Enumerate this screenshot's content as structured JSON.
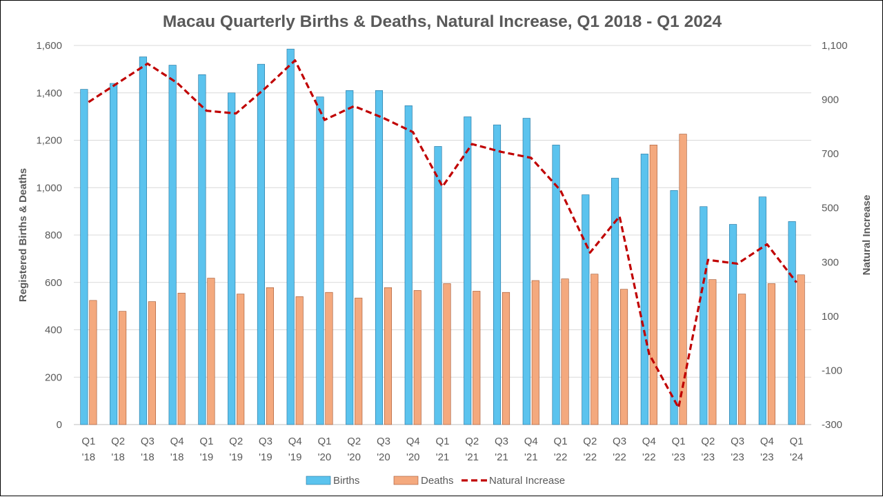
{
  "chart_data": {
    "type": "bar",
    "title": "Macau Quarterly Births & Deaths, Natural Increase, Q1 2018 - Q1 2024",
    "ylabel": "Registered Births & Deaths",
    "y2label": "Natural Increase",
    "ylim": [
      0,
      1600
    ],
    "y2lim": [
      -300,
      1100
    ],
    "yticks": [
      "0",
      "200",
      "400",
      "600",
      "800",
      "1,000",
      "1,200",
      "1,400",
      "1,600"
    ],
    "y2ticks": [
      "-300",
      "-100",
      "100",
      "300",
      "500",
      "700",
      "900",
      "1,100"
    ],
    "ytick_values": [
      0,
      200,
      400,
      600,
      800,
      1000,
      1200,
      1400,
      1600
    ],
    "y2tick_values": [
      -300,
      -100,
      100,
      300,
      500,
      700,
      900,
      1100
    ],
    "categories": [
      [
        "Q1",
        "'18"
      ],
      [
        "Q2",
        "'18"
      ],
      [
        "Q3",
        "'18"
      ],
      [
        "Q4",
        "'18"
      ],
      [
        "Q1",
        "'19"
      ],
      [
        "Q2",
        "'19"
      ],
      [
        "Q3",
        "'19"
      ],
      [
        "Q4",
        "'19"
      ],
      [
        "Q1",
        "'20"
      ],
      [
        "Q2",
        "'20"
      ],
      [
        "Q3",
        "'20"
      ],
      [
        "Q4",
        "'20"
      ],
      [
        "Q1",
        "'21"
      ],
      [
        "Q2",
        "'21"
      ],
      [
        "Q3",
        "'21"
      ],
      [
        "Q4",
        "'21"
      ],
      [
        "Q1",
        "'22"
      ],
      [
        "Q2",
        "'22"
      ],
      [
        "Q3",
        "'22"
      ],
      [
        "Q4",
        "'22"
      ],
      [
        "Q1",
        "'23"
      ],
      [
        "Q2",
        "'23"
      ],
      [
        "Q3",
        "'23"
      ],
      [
        "Q4",
        "'23"
      ],
      [
        "Q1",
        "'24"
      ]
    ],
    "series": [
      {
        "name": "Births",
        "kind": "bar",
        "axis": "left",
        "color": "#5bc3ee",
        "values": [
          1415,
          1440,
          1552,
          1517,
          1477,
          1400,
          1521,
          1585,
          1383,
          1410,
          1410,
          1346,
          1174,
          1299,
          1265,
          1293,
          1180,
          970,
          1040,
          1142,
          988,
          920,
          845,
          961,
          857
        ]
      },
      {
        "name": "Deaths",
        "kind": "bar",
        "axis": "left",
        "color": "#f4a97e",
        "values": [
          524,
          478,
          519,
          555,
          618,
          551,
          578,
          540,
          558,
          534,
          578,
          566,
          595,
          563,
          558,
          608,
          615,
          635,
          571,
          1180,
          1226,
          612,
          551,
          595,
          632
        ]
      },
      {
        "name": "Natural Increase",
        "kind": "line",
        "axis": "right",
        "color": "#c00000",
        "values": [
          891,
          962,
          1033,
          962,
          859,
          849,
          943,
          1045,
          825,
          876,
          832,
          780,
          579,
          736,
          707,
          685,
          565,
          335,
          469,
          -38,
          -238,
          308,
          294,
          366,
          225
        ]
      }
    ],
    "grid": true,
    "legend": "bottom"
  }
}
